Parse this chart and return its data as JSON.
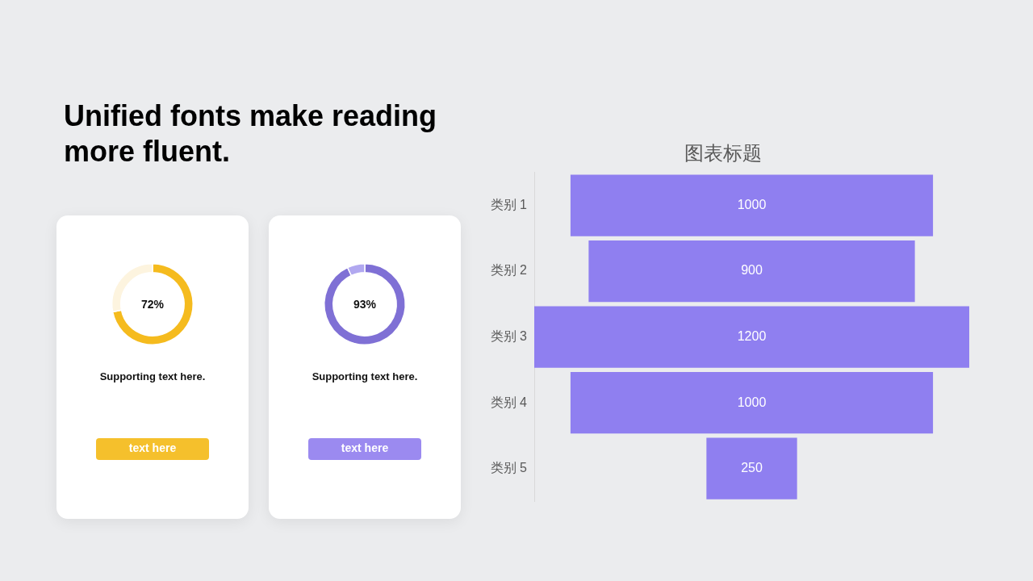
{
  "chart_data": [
    {
      "type": "other",
      "title": "Unified fonts make reading more fluent."
    },
    {
      "type": "donut",
      "categories": [
        null,
        null
      ],
      "values": [
        72,
        28
      ],
      "colors": [
        "#f5bb1e",
        "#fdf4df"
      ],
      "annotations": [
        "72%",
        "Supporting text here.",
        "text here"
      ]
    },
    {
      "type": "donut",
      "categories": [
        null,
        null
      ],
      "values": [
        93,
        7
      ],
      "colors": [
        "#7f70d5",
        "#b1a8f0"
      ],
      "annotations": [
        "93%",
        "Supporting text here.",
        "text here"
      ]
    },
    {
      "type": "other",
      "title": "图表标题",
      "categories": [
        "类别 1",
        "类别 2",
        "类别 3",
        "类别 4",
        "类别 5"
      ],
      "values": [
        1000,
        900,
        1200,
        1000,
        250
      ],
      "color": "#8f7ff0",
      "data_labels": true
    }
  ]
}
